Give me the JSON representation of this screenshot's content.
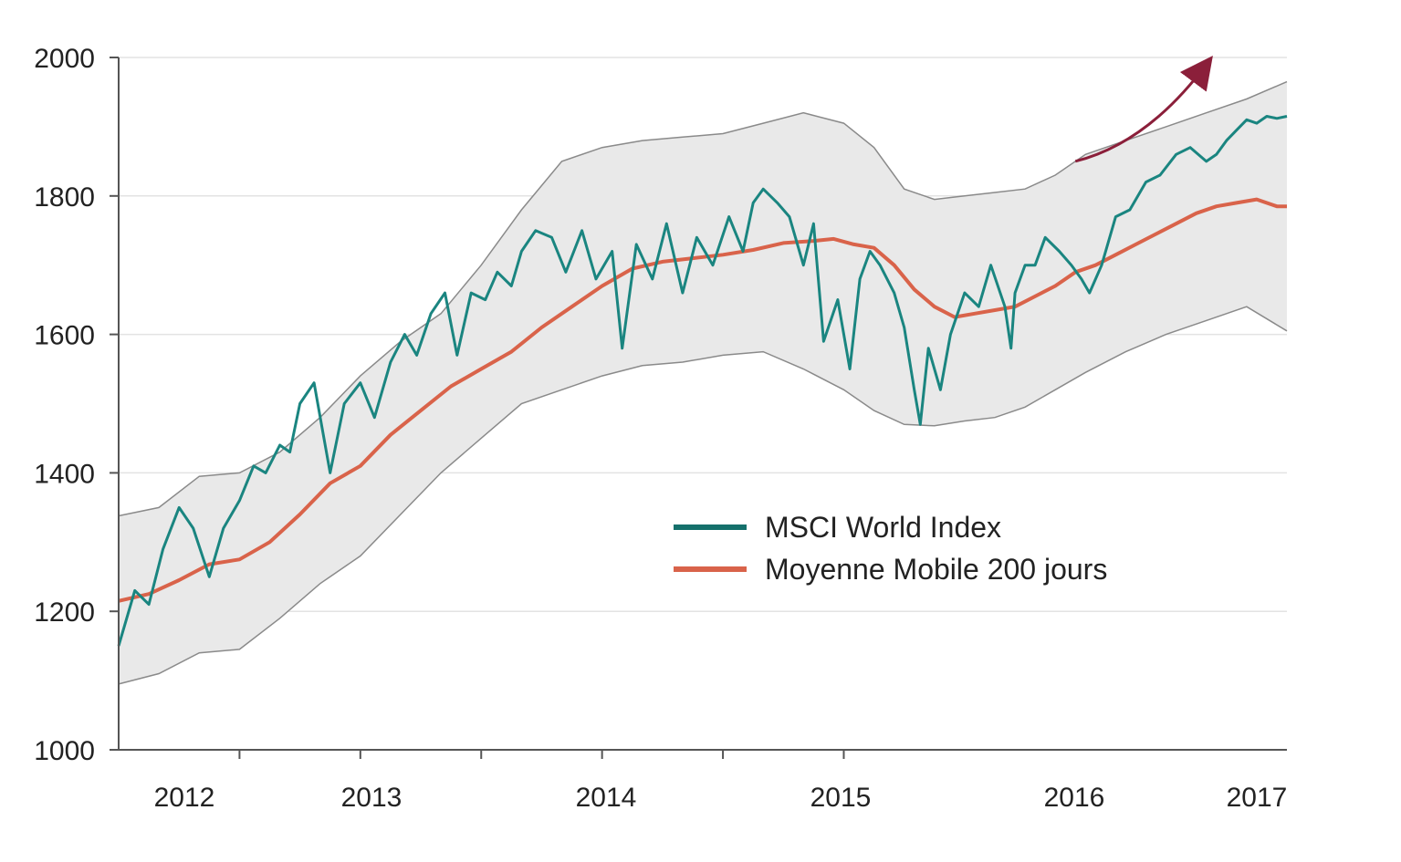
{
  "chart_data": {
    "type": "line",
    "title": "",
    "xlabel": "",
    "ylabel": "",
    "ylim": [
      1000,
      2000
    ],
    "y_ticks": [
      "1000",
      "1200",
      "1400",
      "1600",
      "1800",
      "2000"
    ],
    "x_ticks": [
      "2012",
      "2013",
      "2014",
      "2015",
      "2016",
      "2017"
    ],
    "xlim": [
      2011.6,
      2017.4
    ],
    "grid": "horizontal",
    "legend_position": "center-right",
    "series": [
      {
        "name": "MSCI World Index",
        "color": "#1a8580",
        "x": [
          2011.6,
          2011.68,
          2011.75,
          2011.82,
          2011.9,
          2011.97,
          2012.05,
          2012.12,
          2012.2,
          2012.27,
          2012.33,
          2012.4,
          2012.45,
          2012.5,
          2012.57,
          2012.65,
          2012.72,
          2012.8,
          2012.87,
          2012.95,
          2013.02,
          2013.08,
          2013.15,
          2013.22,
          2013.28,
          2013.35,
          2013.42,
          2013.48,
          2013.55,
          2013.6,
          2013.67,
          2013.75,
          2013.82,
          2013.9,
          2013.97,
          2014.05,
          2014.1,
          2014.17,
          2014.25,
          2014.32,
          2014.4,
          2014.47,
          2014.55,
          2014.63,
          2014.7,
          2014.75,
          2014.8,
          2014.87,
          2014.93,
          2015.0,
          2015.05,
          2015.1,
          2015.17,
          2015.23,
          2015.28,
          2015.33,
          2015.38,
          2015.45,
          2015.5,
          2015.55,
          2015.58,
          2015.62,
          2015.68,
          2015.73,
          2015.8,
          2015.87,
          2015.93,
          2016.0,
          2016.03,
          2016.05,
          2016.1,
          2016.15,
          2016.2,
          2016.27,
          2016.33,
          2016.38,
          2016.42,
          2016.48,
          2016.55,
          2016.62,
          2016.7,
          2016.77,
          2016.85,
          2016.92,
          2017.0,
          2017.05,
          2017.1,
          2017.15,
          2017.2,
          2017.25,
          2017.3,
          2017.35,
          2017.4
        ],
        "values": [
          1150,
          1230,
          1210,
          1290,
          1350,
          1320,
          1250,
          1320,
          1360,
          1410,
          1400,
          1440,
          1430,
          1500,
          1530,
          1400,
          1500,
          1530,
          1480,
          1560,
          1600,
          1570,
          1630,
          1660,
          1570,
          1660,
          1650,
          1690,
          1670,
          1720,
          1750,
          1740,
          1690,
          1750,
          1680,
          1720,
          1580,
          1730,
          1680,
          1760,
          1660,
          1740,
          1700,
          1770,
          1720,
          1790,
          1810,
          1790,
          1770,
          1700,
          1760,
          1590,
          1650,
          1550,
          1680,
          1720,
          1700,
          1660,
          1610,
          1520,
          1470,
          1580,
          1520,
          1600,
          1660,
          1640,
          1700,
          1640,
          1580,
          1660,
          1700,
          1700,
          1740,
          1720,
          1700,
          1680,
          1660,
          1700,
          1770,
          1780,
          1820,
          1830,
          1860,
          1870,
          1850,
          1860,
          1880,
          1895,
          1910,
          1905,
          1915,
          1912,
          1915
        ]
      },
      {
        "name": "Moyenne Mobile 200 jours",
        "color": "#d9634a",
        "x": [
          2011.6,
          2011.75,
          2011.9,
          2012.05,
          2012.2,
          2012.35,
          2012.5,
          2012.65,
          2012.8,
          2012.95,
          2013.1,
          2013.25,
          2013.4,
          2013.55,
          2013.7,
          2013.85,
          2014.0,
          2014.15,
          2014.3,
          2014.45,
          2014.6,
          2014.75,
          2014.9,
          2015.05,
          2015.15,
          2015.25,
          2015.35,
          2015.45,
          2015.55,
          2015.65,
          2015.75,
          2015.85,
          2015.95,
          2016.05,
          2016.15,
          2016.25,
          2016.35,
          2016.45,
          2016.55,
          2016.65,
          2016.75,
          2016.85,
          2016.95,
          2017.05,
          2017.15,
          2017.25,
          2017.35,
          2017.4
        ],
        "values": [
          1215,
          1225,
          1245,
          1268,
          1275,
          1300,
          1340,
          1385,
          1410,
          1455,
          1490,
          1525,
          1550,
          1575,
          1610,
          1640,
          1670,
          1695,
          1705,
          1710,
          1715,
          1722,
          1732,
          1735,
          1738,
          1730,
          1725,
          1700,
          1665,
          1640,
          1625,
          1630,
          1635,
          1640,
          1655,
          1670,
          1690,
          1700,
          1715,
          1730,
          1745,
          1760,
          1775,
          1785,
          1790,
          1795,
          1785,
          1785
        ]
      }
    ],
    "bands": {
      "upper": {
        "x": [
          2011.6,
          2011.8,
          2012.0,
          2012.2,
          2012.4,
          2012.6,
          2012.8,
          2013.0,
          2013.2,
          2013.4,
          2013.6,
          2013.8,
          2014.0,
          2014.2,
          2014.4,
          2014.6,
          2014.8,
          2015.0,
          2015.2,
          2015.35,
          2015.5,
          2015.65,
          2015.8,
          2015.95,
          2016.1,
          2016.25,
          2016.4,
          2016.6,
          2016.8,
          2017.0,
          2017.2,
          2017.4
        ],
        "values": [
          1338,
          1350,
          1395,
          1400,
          1430,
          1480,
          1540,
          1590,
          1630,
          1700,
          1780,
          1850,
          1870,
          1880,
          1885,
          1890,
          1905,
          1920,
          1905,
          1870,
          1810,
          1795,
          1800,
          1805,
          1810,
          1830,
          1860,
          1880,
          1900,
          1920,
          1940,
          1965
        ]
      },
      "lower": {
        "x": [
          2011.6,
          2011.8,
          2012.0,
          2012.2,
          2012.4,
          2012.6,
          2012.8,
          2013.0,
          2013.2,
          2013.4,
          2013.6,
          2013.8,
          2014.0,
          2014.2,
          2014.4,
          2014.6,
          2014.8,
          2015.0,
          2015.2,
          2015.35,
          2015.5,
          2015.65,
          2015.8,
          2015.95,
          2016.1,
          2016.25,
          2016.4,
          2016.6,
          2016.8,
          2017.0,
          2017.2,
          2017.4
        ],
        "values": [
          1095,
          1110,
          1140,
          1145,
          1190,
          1240,
          1280,
          1340,
          1400,
          1450,
          1500,
          1520,
          1540,
          1555,
          1560,
          1570,
          1575,
          1550,
          1520,
          1490,
          1470,
          1468,
          1475,
          1480,
          1495,
          1520,
          1545,
          1575,
          1600,
          1620,
          1640,
          1605
        ]
      }
    },
    "annotation": {
      "type": "arrow",
      "color": "#8b1f3a",
      "from": [
        2016.35,
        1850
      ],
      "to": [
        2017.0,
        1990
      ]
    }
  }
}
